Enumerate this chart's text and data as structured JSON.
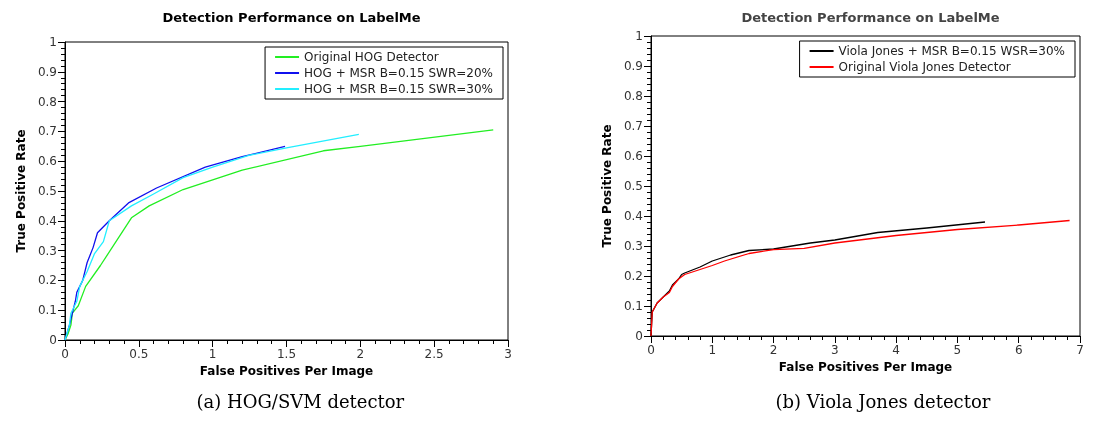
{
  "chart_data": [
    {
      "type": "line",
      "title": "Detection Performance on LabelMe",
      "xlabel": "False Positives Per Image",
      "ylabel": "True Positive Rate",
      "annotations": [
        "(a) HOG/SVM detector"
      ],
      "series": [
        {
          "name": "Original HOG Detector",
          "color": "#22ee22",
          "x": [
            0,
            0.02,
            0.04,
            0.05,
            0.09,
            0.14,
            0.24,
            0.45,
            0.57,
            0.8,
            1.2,
            1.75,
            2,
            2.9
          ],
          "values": [
            0,
            0.02,
            0.05,
            0.09,
            0.115,
            0.18,
            0.25,
            0.41,
            0.45,
            0.505,
            0.57,
            0.635,
            0.65,
            0.705
          ]
        },
        {
          "name": "HOG + MSR B=0.15 SWR=20%",
          "color": "#1010ee",
          "x": [
            0,
            0.03,
            0.05,
            0.07,
            0.08,
            0.1,
            0.12,
            0.15,
            0.19,
            0.22,
            0.3,
            0.43,
            0.62,
            0.95,
            1.2,
            1.49
          ],
          "values": [
            0,
            0.05,
            0.09,
            0.13,
            0.16,
            0.18,
            0.2,
            0.26,
            0.31,
            0.36,
            0.4,
            0.46,
            0.51,
            0.58,
            0.615,
            0.65
          ]
        },
        {
          "name": "HOG + MSR B=0.15 SWR=30%",
          "color": "#22eeff",
          "x": [
            0,
            0.03,
            0.04,
            0.08,
            0.1,
            0.15,
            0.2,
            0.26,
            0.3,
            0.45,
            0.6,
            0.8,
            1.0,
            1.25,
            1.5,
            1.99
          ],
          "values": [
            0,
            0.05,
            0.09,
            0.13,
            0.18,
            0.23,
            0.29,
            0.33,
            0.4,
            0.45,
            0.49,
            0.545,
            0.58,
            0.62,
            0.645,
            0.69
          ]
        }
      ],
      "xlim": [
        0,
        3
      ],
      "xticks": [
        0,
        0.5,
        1,
        1.5,
        2,
        2.5,
        3
      ],
      "ylim": [
        0,
        1
      ],
      "yticks": [
        0,
        0.1,
        0.2,
        0.3,
        0.4,
        0.5,
        0.6,
        0.7,
        0.8,
        0.9,
        1
      ],
      "legend": "top right",
      "marker": "none",
      "line_style": "solid"
    },
    {
      "type": "line",
      "title": "Detection Performance on LabelMe",
      "xlabel": "False Positives Per Image",
      "ylabel": "True Positive Rate",
      "annotations": [
        "(b) Viola Jones detector"
      ],
      "series": [
        {
          "name": "Viola Jones + MSR B=0.15 WSR=30%",
          "color": "#000000",
          "x": [
            0,
            0.02,
            0.1,
            0.2,
            0.3,
            0.35,
            0.45,
            0.5,
            0.55,
            0.8,
            1.0,
            1.3,
            1.6,
            2.0,
            2.6,
            3.0,
            3.7,
            4.5,
            5.45
          ],
          "values": [
            0,
            0.08,
            0.11,
            0.13,
            0.15,
            0.17,
            0.19,
            0.205,
            0.21,
            0.23,
            0.25,
            0.27,
            0.285,
            0.29,
            0.31,
            0.32,
            0.345,
            0.36,
            0.38
          ]
        },
        {
          "name": "Original Viola Jones Detector",
          "color": "#ff0000",
          "x": [
            0,
            0.02,
            0.1,
            0.2,
            0.3,
            0.35,
            0.45,
            0.55,
            0.7,
            1.0,
            1.2,
            1.6,
            2.0,
            2.5,
            3.0,
            4.0,
            5.0,
            6.0,
            6.83
          ],
          "values": [
            0,
            0.08,
            0.11,
            0.13,
            0.145,
            0.165,
            0.19,
            0.205,
            0.215,
            0.235,
            0.25,
            0.275,
            0.288,
            0.292,
            0.31,
            0.335,
            0.355,
            0.37,
            0.385
          ]
        }
      ],
      "xlim": [
        0,
        7
      ],
      "xticks": [
        0,
        1,
        2,
        3,
        4,
        5,
        6,
        7
      ],
      "ylim": [
        0,
        1
      ],
      "yticks": [
        0,
        0.1,
        0.2,
        0.3,
        0.4,
        0.5,
        0.6,
        0.7,
        0.8,
        0.9,
        1
      ],
      "legend": "top right",
      "marker": "none",
      "line_style": "solid"
    }
  ]
}
